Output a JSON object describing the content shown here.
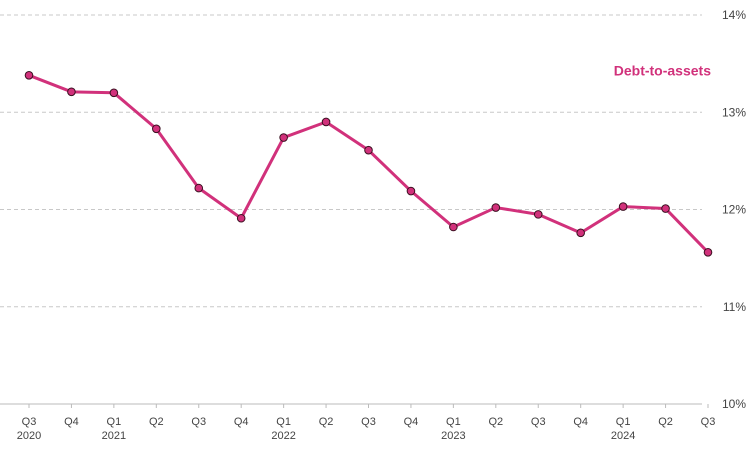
{
  "chart_data": {
    "type": "line",
    "categories": [
      "Q3",
      "Q4",
      "Q1",
      "Q2",
      "Q3",
      "Q4",
      "Q1",
      "Q2",
      "Q3",
      "Q4",
      "Q1",
      "Q2",
      "Q3",
      "Q4",
      "Q1",
      "Q2",
      "Q3"
    ],
    "year_labels": [
      "2020",
      null,
      "2021",
      null,
      null,
      null,
      "2022",
      null,
      null,
      null,
      "2023",
      null,
      null,
      null,
      "2024",
      null,
      null
    ],
    "series": [
      {
        "name": "Debt-to-assets",
        "color": "#d1317b",
        "values": [
          13.38,
          13.21,
          13.2,
          12.83,
          12.22,
          11.91,
          12.74,
          12.9,
          12.61,
          12.19,
          11.82,
          12.02,
          11.95,
          11.76,
          12.03,
          12.01,
          11.56
        ]
      }
    ],
    "ylim": [
      10,
      14
    ],
    "yticks": [
      {
        "value": 10,
        "label": "10%"
      },
      {
        "value": 11,
        "label": "11%"
      },
      {
        "value": 12,
        "label": "12%"
      },
      {
        "value": 13,
        "label": "13%"
      },
      {
        "value": 14,
        "label": "14%"
      }
    ],
    "grid": true,
    "y_axis_side": "right"
  }
}
